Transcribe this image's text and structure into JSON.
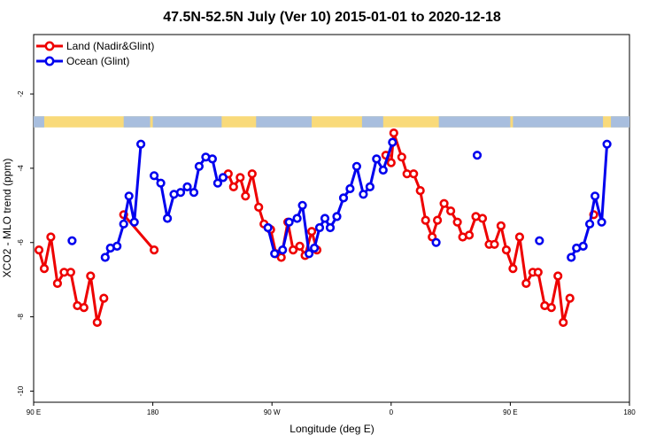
{
  "chart_data": {
    "type": "line",
    "title": "47.5N-52.5N July (Ver 10)   2015-01-01 to 2020-12-18",
    "xlabel": "Longitude (deg E)",
    "ylabel": "XCO2 - MLO trend (ppm)",
    "xlim": [
      90,
      540
    ],
    "ylim": [
      -10.3,
      -0.4
    ],
    "x_ticks": [
      {
        "value": 90,
        "label": "90 E"
      },
      {
        "value": 180,
        "label": "180"
      },
      {
        "value": 270,
        "label": "90 W"
      },
      {
        "value": 360,
        "label": "0"
      },
      {
        "value": 450,
        "label": "90 E"
      },
      {
        "value": 540,
        "label": "180"
      }
    ],
    "y_ticks": [
      {
        "value": -2,
        "label": "-2"
      },
      {
        "value": -4,
        "label": "-4"
      },
      {
        "value": -6,
        "label": "-6"
      },
      {
        "value": -8,
        "label": "-8"
      },
      {
        "value": -10,
        "label": "-10"
      }
    ],
    "grid": false,
    "legend_position": "top-left",
    "land_ocean_strip": {
      "y_range": [
        -2.9,
        -2.6
      ],
      "land_color": "#f9da7a",
      "ocean_color": "#a8bede"
    },
    "series": [
      {
        "name": "Land (Nadir&Glint)",
        "color": "#ee0000",
        "segments": [
          [
            [
              94,
              -6.2
            ],
            [
              98,
              -6.7
            ],
            [
              103,
              -5.85
            ],
            [
              108,
              -7.1
            ],
            [
              113,
              -6.8
            ],
            [
              118,
              -6.8
            ],
            [
              123,
              -7.7
            ],
            [
              128,
              -7.75
            ],
            [
              133,
              -6.9
            ],
            [
              138,
              -8.15
            ],
            [
              143,
              -7.5
            ]
          ],
          [
            [
              158,
              -5.25
            ],
            [
              181,
              -6.2
            ]
          ],
          [
            [
              237,
              -4.15
            ],
            [
              241,
              -4.5
            ],
            [
              246,
              -4.25
            ],
            [
              250,
              -4.75
            ],
            [
              255,
              -4.15
            ],
            [
              260,
              -5.05
            ],
            [
              264,
              -5.5
            ],
            [
              269,
              -5.65
            ],
            [
              273,
              -6.3
            ],
            [
              277,
              -6.4
            ],
            [
              282,
              -5.45
            ],
            [
              286,
              -6.2
            ],
            [
              291,
              -6.1
            ],
            [
              295,
              -6.35
            ],
            [
              300,
              -5.7
            ],
            [
              304,
              -6.2
            ]
          ],
          [
            [
              356,
              -3.65
            ],
            [
              360,
              -3.85
            ],
            [
              362,
              -3.05
            ],
            [
              368,
              -3.7
            ],
            [
              372,
              -4.15
            ],
            [
              377,
              -4.15
            ],
            [
              382,
              -4.6
            ],
            [
              386,
              -5.4
            ],
            [
              391,
              -5.85
            ],
            [
              395,
              -5.4
            ],
            [
              400,
              -4.95
            ],
            [
              405,
              -5.15
            ],
            [
              410,
              -5.45
            ],
            [
              414,
              -5.85
            ],
            [
              419,
              -5.8
            ],
            [
              424,
              -5.3
            ],
            [
              429,
              -5.35
            ],
            [
              434,
              -6.05
            ],
            [
              438,
              -6.05
            ],
            [
              443,
              -5.55
            ],
            [
              447,
              -6.2
            ],
            [
              452,
              -6.7
            ],
            [
              457,
              -5.85
            ],
            [
              462,
              -7.1
            ],
            [
              467,
              -6.8
            ],
            [
              471,
              -6.8
            ],
            [
              476,
              -7.7
            ],
            [
              481,
              -7.75
            ],
            [
              486,
              -6.9
            ],
            [
              490,
              -8.15
            ],
            [
              495,
              -7.5
            ]
          ],
          [
            [
              513,
              -5.25
            ]
          ]
        ]
      },
      {
        "name": "Ocean (Glint)",
        "color": "#0000ee",
        "segments": [
          [
            [
              119,
              -5.95
            ]
          ],
          [
            [
              144,
              -6.4
            ],
            [
              148,
              -6.15
            ],
            [
              153,
              -6.1
            ],
            [
              158,
              -5.5
            ],
            [
              162,
              -4.75
            ],
            [
              166,
              -5.45
            ],
            [
              171,
              -3.35
            ]
          ],
          [
            [
              181,
              -4.2
            ],
            [
              186,
              -4.4
            ],
            [
              191,
              -5.35
            ],
            [
              196,
              -4.7
            ],
            [
              201,
              -4.65
            ],
            [
              206,
              -4.5
            ],
            [
              211,
              -4.65
            ],
            [
              215,
              -3.95
            ],
            [
              220,
              -3.7
            ],
            [
              225,
              -3.75
            ],
            [
              229,
              -4.4
            ],
            [
              233,
              -4.25
            ]
          ],
          [
            [
              267,
              -5.6
            ],
            [
              272,
              -6.3
            ],
            [
              278,
              -6.2
            ],
            [
              283,
              -5.45
            ],
            [
              289,
              -5.35
            ],
            [
              293,
              -5.0
            ],
            [
              298,
              -6.3
            ],
            [
              302,
              -6.15
            ],
            [
              306,
              -5.6
            ],
            [
              310,
              -5.35
            ],
            [
              314,
              -5.6
            ],
            [
              319,
              -5.3
            ],
            [
              324,
              -4.8
            ],
            [
              329,
              -4.55
            ],
            [
              334,
              -3.95
            ],
            [
              339,
              -4.7
            ],
            [
              344,
              -4.5
            ],
            [
              349,
              -3.75
            ],
            [
              354,
              -4.05
            ],
            [
              361,
              -3.3
            ]
          ],
          [
            [
              394,
              -6.0
            ]
          ],
          [
            [
              425,
              -3.65
            ]
          ],
          [
            [
              472,
              -5.95
            ]
          ],
          [
            [
              496,
              -6.4
            ],
            [
              500,
              -6.15
            ],
            [
              505,
              -6.1
            ],
            [
              510,
              -5.5
            ],
            [
              514,
              -4.75
            ],
            [
              519,
              -5.45
            ],
            [
              523,
              -3.35
            ]
          ]
        ]
      }
    ]
  }
}
